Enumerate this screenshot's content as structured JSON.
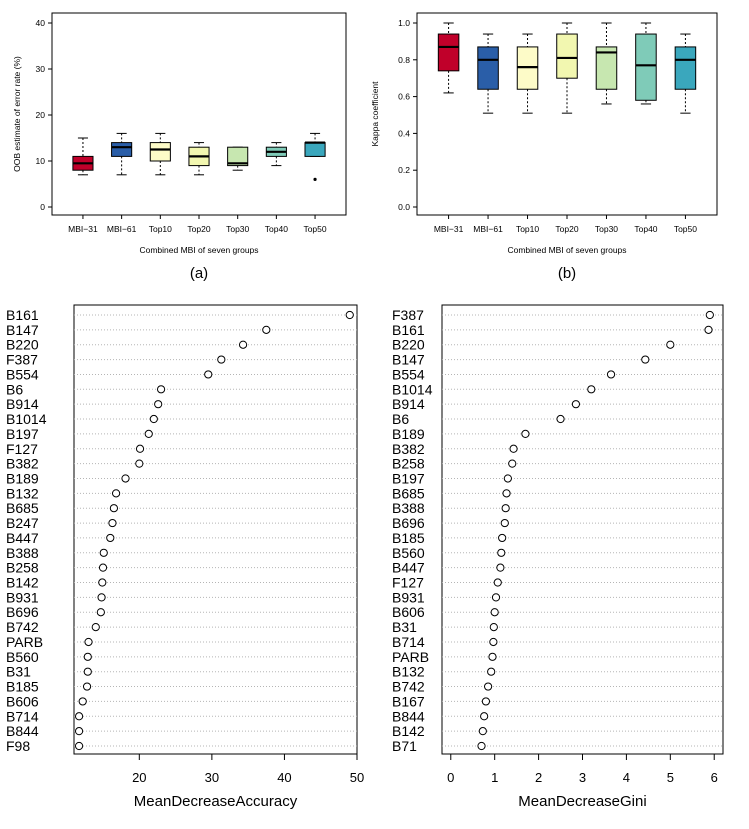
{
  "chart_data": [
    {
      "id": "a",
      "type": "box",
      "panel_label": "(a)",
      "xlabel": "Combined MBI of seven groups",
      "ylabel": "OOB estimate of error rate (%)",
      "ylim": [
        0,
        40
      ],
      "yticks": [
        0,
        10,
        20,
        30,
        40
      ],
      "categories": [
        "MBI−31",
        "MBI−61",
        "Top10",
        "Top20",
        "Top30",
        "Top40",
        "Top50"
      ],
      "colors": [
        "#c0002a",
        "#2a5ea8",
        "#fdfbc8",
        "#f2f7b0",
        "#c7e7b0",
        "#7fcbb8",
        "#3aa7bd"
      ],
      "boxes": [
        {
          "min": 7,
          "q1": 8,
          "median": 9.5,
          "q3": 11,
          "max": 15,
          "outliers": []
        },
        {
          "min": 7,
          "q1": 11,
          "median": 13,
          "q3": 14,
          "max": 16,
          "outliers": []
        },
        {
          "min": 7,
          "q1": 10,
          "median": 12.5,
          "q3": 14,
          "max": 16,
          "outliers": []
        },
        {
          "min": 7,
          "q1": 9,
          "median": 11,
          "q3": 13,
          "max": 14,
          "outliers": []
        },
        {
          "min": 8,
          "q1": 9,
          "median": 9.5,
          "q3": 13,
          "max": 13,
          "outliers": []
        },
        {
          "min": 9,
          "q1": 11,
          "median": 12,
          "q3": 13,
          "max": 14,
          "outliers": []
        },
        {
          "min": 11,
          "q1": 11,
          "median": 14,
          "q3": 14,
          "max": 16,
          "outliers": [
            6
          ]
        }
      ]
    },
    {
      "id": "b",
      "type": "box",
      "panel_label": "(b)",
      "xlabel": "Combined MBI of seven groups",
      "ylabel": "Kappa coefficient",
      "ylim": [
        0,
        1
      ],
      "yticks": [
        "0.0",
        "0.2",
        "0.4",
        "0.6",
        "0.8",
        "1.0"
      ],
      "categories": [
        "MBI−31",
        "MBI−61",
        "Top10",
        "Top20",
        "Top30",
        "Top40",
        "Top50"
      ],
      "colors": [
        "#c0002a",
        "#2a5ea8",
        "#fdfbc8",
        "#f2f7b0",
        "#c7e7b0",
        "#7fcbb8",
        "#3aa7bd"
      ],
      "boxes": [
        {
          "min": 0.62,
          "q1": 0.74,
          "median": 0.87,
          "q3": 0.94,
          "max": 1.0,
          "outliers": []
        },
        {
          "min": 0.51,
          "q1": 0.64,
          "median": 0.8,
          "q3": 0.87,
          "max": 0.94,
          "outliers": []
        },
        {
          "min": 0.51,
          "q1": 0.64,
          "median": 0.76,
          "q3": 0.87,
          "max": 0.94,
          "outliers": []
        },
        {
          "min": 0.51,
          "q1": 0.7,
          "median": 0.81,
          "q3": 0.94,
          "max": 1.0,
          "outliers": []
        },
        {
          "min": 0.56,
          "q1": 0.64,
          "median": 0.84,
          "q3": 0.87,
          "max": 1.0,
          "outliers": []
        },
        {
          "min": 0.56,
          "q1": 0.58,
          "median": 0.77,
          "q3": 0.94,
          "max": 1.0,
          "outliers": []
        },
        {
          "min": 0.51,
          "q1": 0.64,
          "median": 0.8,
          "q3": 0.87,
          "max": 0.94,
          "outliers": []
        }
      ]
    },
    {
      "id": "c",
      "type": "dotplot",
      "xlabel": "MeanDecreaseAccuracy",
      "xlim": [
        11,
        50
      ],
      "xticks": [
        20,
        30,
        40,
        50
      ],
      "labels": [
        "B161",
        "B147",
        "B220",
        "F387",
        "B554",
        "B6",
        "B914",
        "B1014",
        "B197",
        "F127",
        "B382",
        "B189",
        "B132",
        "B685",
        "B247",
        "B447",
        "B388",
        "B258",
        "B142",
        "B931",
        "B696",
        "B742",
        "PARB",
        "B560",
        "B31",
        "B185",
        "B606",
        "B714",
        "B844",
        "F98"
      ],
      "values": [
        49,
        37.5,
        34.3,
        31.3,
        29.5,
        23,
        22.6,
        22,
        21.3,
        20.1,
        20,
        18.1,
        16.8,
        16.5,
        16.3,
        16,
        15.1,
        15,
        14.9,
        14.8,
        14.7,
        14,
        13,
        12.9,
        12.9,
        12.8,
        12.2,
        11.7,
        11.7,
        11.7
      ]
    },
    {
      "id": "d",
      "type": "dotplot",
      "xlabel": "MeanDecreaseGini",
      "xlim": [
        -0.2,
        6.2
      ],
      "xticks": [
        0,
        1,
        2,
        3,
        4,
        5,
        6
      ],
      "labels": [
        "F387",
        "B161",
        "B220",
        "B147",
        "B554",
        "B1014",
        "B914",
        "B6",
        "B189",
        "B382",
        "B258",
        "B197",
        "B685",
        "B388",
        "B696",
        "B185",
        "B560",
        "B447",
        "F127",
        "B931",
        "B606",
        "B31",
        "B714",
        "PARB",
        "B132",
        "B742",
        "B167",
        "B844",
        "B142",
        "B71"
      ],
      "values": [
        5.9,
        5.87,
        5,
        4.43,
        3.65,
        3.2,
        2.85,
        2.5,
        1.7,
        1.43,
        1.4,
        1.3,
        1.27,
        1.25,
        1.23,
        1.17,
        1.15,
        1.13,
        1.07,
        1.03,
        1,
        0.98,
        0.97,
        0.95,
        0.92,
        0.85,
        0.8,
        0.76,
        0.73,
        0.7
      ]
    }
  ]
}
